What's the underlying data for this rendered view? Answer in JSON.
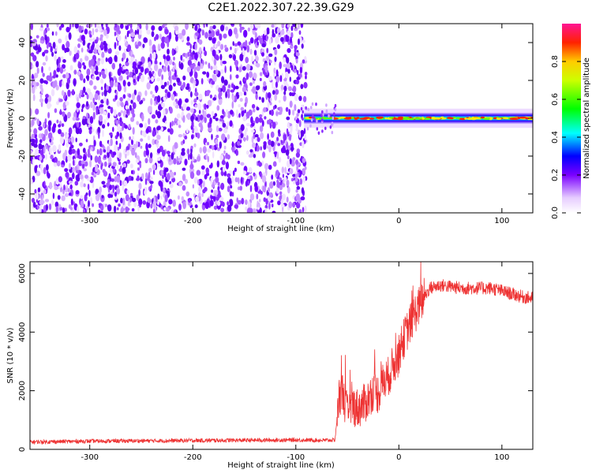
{
  "title": "C2E1.2022.307.22.39.G29",
  "colors": {
    "snr_line": "#ee3333",
    "frame": "#000000"
  },
  "chart_data": [
    {
      "type": "heatmap",
      "xlabel": "Height of straight line (km)",
      "ylabel": "Frequency (Hz)",
      "xlim": [
        -358,
        130
      ],
      "ylim": [
        -50,
        50
      ],
      "xticks": [
        -300,
        -200,
        -100,
        0,
        100
      ],
      "yticks": [
        -40,
        -20,
        0,
        20,
        40
      ],
      "noise_region_x": [
        -358,
        -90
      ],
      "signal_band": {
        "x_start": -92,
        "x_end": 130,
        "center_hz": 0,
        "halfwidth_hz": 3
      },
      "colorbar": {
        "label": "Normalized spectral amplitude",
        "range": [
          0,
          1
        ],
        "ticks": [
          0.0,
          0.2,
          0.4,
          0.6,
          0.8
        ]
      },
      "colorbar_tick_labels": [
        "0.0",
        "0.2",
        "0.4",
        "0.6",
        "0.8"
      ]
    },
    {
      "type": "line",
      "xlabel": "Height of straight line (km)",
      "ylabel": "SNR (10 * v/v)",
      "xlim": [
        -358,
        130
      ],
      "ylim": [
        0,
        6400
      ],
      "xticks": [
        -300,
        -200,
        -100,
        0,
        100
      ],
      "yticks": [
        0,
        2000,
        4000,
        6000
      ],
      "series": [
        {
          "x": [
            -358,
            -300,
            -250,
            -200,
            -150,
            -100,
            -70,
            -62,
            -58,
            -55,
            -50,
            -45,
            -40,
            -35,
            -30,
            -25,
            -20,
            -15,
            -10,
            -5,
            0,
            5,
            10,
            15,
            20,
            25,
            30,
            40,
            50,
            60,
            70,
            80,
            90,
            100,
            110,
            120,
            130
          ],
          "y": [
            250,
            280,
            290,
            300,
            310,
            320,
            310,
            320,
            1800,
            2000,
            1200,
            1500,
            1400,
            1500,
            1700,
            2000,
            1900,
            2300,
            2500,
            2900,
            3200,
            3800,
            4200,
            4600,
            4900,
            5200,
            5500,
            5600,
            5550,
            5500,
            5500,
            5500,
            5500,
            5400,
            5300,
            5200,
            5150
          ]
        }
      ]
    }
  ]
}
